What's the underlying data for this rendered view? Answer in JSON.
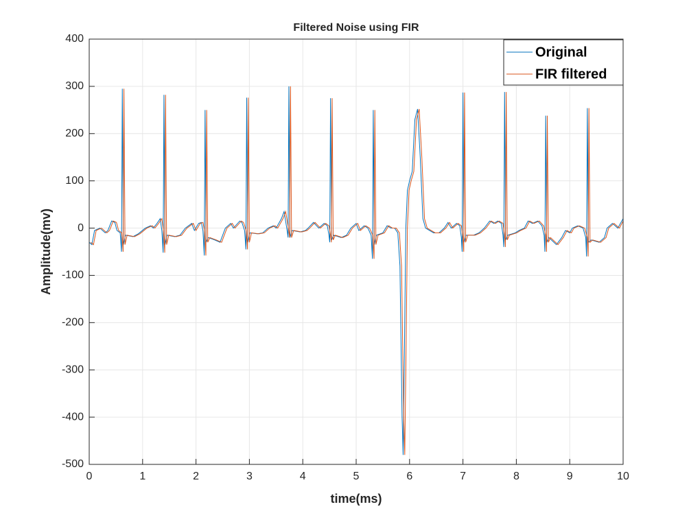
{
  "chart_data": {
    "type": "line",
    "title": "Filtered Noise using FIR",
    "x_label": "time(ms)",
    "y_label": "Amplitude(mv)",
    "xlim": [
      0,
      10
    ],
    "xticks": [
      0,
      1,
      2,
      3,
      4,
      5,
      6,
      7,
      8,
      9,
      10
    ],
    "ylim": [
      -500,
      400
    ],
    "yticks": [
      -500,
      -400,
      -300,
      -200,
      -100,
      0,
      100,
      200,
      300,
      400
    ],
    "grid": true,
    "legend": "northeast",
    "series": [
      {
        "name": "Original",
        "color": "#0072BD",
        "x": [
          0,
          0.05,
          0.1,
          0.2,
          0.3,
          0.35,
          0.42,
          0.48,
          0.52,
          0.58,
          0.605,
          0.62,
          0.64,
          0.68,
          0.82,
          0.92,
          1.05,
          1.15,
          1.2,
          1.27,
          1.33,
          1.36,
          1.385,
          1.4,
          1.42,
          1.46,
          1.6,
          1.7,
          1.8,
          1.92,
          1.97,
          2.05,
          2.1,
          2.13,
          2.155,
          2.17,
          2.19,
          2.23,
          2.35,
          2.45,
          2.55,
          2.65,
          2.7,
          2.82,
          2.86,
          2.91,
          2.935,
          2.95,
          2.97,
          3.01,
          3.15,
          3.25,
          3.35,
          3.45,
          3.5,
          3.6,
          3.65,
          3.7,
          3.725,
          3.74,
          3.76,
          3.8,
          3.95,
          4.05,
          4.1,
          4.2,
          4.3,
          4.4,
          4.46,
          4.49,
          4.505,
          4.52,
          4.54,
          4.58,
          4.72,
          4.82,
          4.9,
          5.0,
          5.05,
          5.15,
          5.22,
          5.28,
          5.305,
          5.32,
          5.34,
          5.38,
          5.5,
          5.58,
          5.65,
          5.72,
          5.78,
          5.82,
          5.86,
          5.88,
          5.9,
          5.93,
          5.96,
          6.0,
          6.05,
          6.1,
          6.15,
          6.2,
          6.25,
          6.3,
          6.45,
          6.55,
          6.65,
          6.72,
          6.78,
          6.88,
          6.94,
          6.97,
          6.985,
          7.0,
          7.02,
          7.06,
          7.2,
          7.3,
          7.4,
          7.5,
          7.58,
          7.65,
          7.72,
          7.75,
          7.765,
          7.78,
          7.8,
          7.84,
          7.98,
          8.05,
          8.15,
          8.22,
          8.3,
          8.4,
          8.48,
          8.52,
          8.535,
          8.55,
          8.57,
          8.61,
          8.75,
          8.85,
          8.92,
          9.0,
          9.05,
          9.15,
          9.25,
          9.3,
          9.315,
          9.33,
          9.35,
          9.4,
          9.55,
          9.65,
          9.7,
          9.8,
          9.9,
          10
        ],
        "values": [
          -30,
          -35,
          -5,
          0,
          -10,
          -5,
          15,
          12,
          -5,
          -10,
          -50,
          295,
          -35,
          -15,
          -18,
          -12,
          0,
          5,
          0,
          10,
          20,
          -5,
          -52,
          282,
          -35,
          -15,
          -18,
          -15,
          0,
          10,
          -5,
          10,
          12,
          -5,
          -58,
          250,
          -30,
          -20,
          -25,
          -30,
          0,
          10,
          0,
          15,
          12,
          -5,
          -45,
          276,
          -30,
          -10,
          -12,
          -10,
          0,
          5,
          0,
          20,
          35,
          0,
          -20,
          300,
          -20,
          -5,
          -8,
          -5,
          0,
          12,
          0,
          10,
          5,
          -15,
          -30,
          275,
          -25,
          -15,
          -20,
          -15,
          0,
          10,
          -5,
          5,
          0,
          -15,
          -65,
          250,
          -35,
          -15,
          -10,
          5,
          0,
          0,
          -10,
          -80,
          -400,
          -480,
          -300,
          0,
          80,
          100,
          120,
          230,
          252,
          150,
          20,
          0,
          -10,
          -10,
          0,
          12,
          0,
          10,
          5,
          -20,
          -50,
          287,
          -30,
          -15,
          -15,
          -10,
          0,
          15,
          10,
          15,
          10,
          -15,
          -40,
          288,
          -25,
          -15,
          -10,
          -5,
          0,
          15,
          10,
          15,
          5,
          -15,
          -50,
          238,
          -30,
          -20,
          -35,
          -20,
          -5,
          -10,
          0,
          5,
          0,
          -20,
          -60,
          254,
          -30,
          -25,
          -30,
          -20,
          0,
          10,
          0,
          20
        ]
      },
      {
        "name": "FIR filtered",
        "color": "#D95319",
        "x": [
          0.03,
          0.08,
          0.13,
          0.23,
          0.33,
          0.38,
          0.45,
          0.51,
          0.55,
          0.61,
          0.635,
          0.65,
          0.67,
          0.71,
          0.85,
          0.95,
          1.08,
          1.18,
          1.23,
          1.3,
          1.36,
          1.39,
          1.415,
          1.43,
          1.45,
          1.49,
          1.63,
          1.73,
          1.83,
          1.95,
          2.0,
          2.08,
          2.13,
          2.16,
          2.185,
          2.2,
          2.22,
          2.26,
          2.38,
          2.48,
          2.58,
          2.68,
          2.73,
          2.85,
          2.89,
          2.94,
          2.965,
          2.98,
          3.0,
          3.04,
          3.18,
          3.28,
          3.38,
          3.48,
          3.53,
          3.63,
          3.68,
          3.73,
          3.755,
          3.77,
          3.79,
          3.83,
          3.98,
          4.08,
          4.13,
          4.23,
          4.33,
          4.43,
          4.49,
          4.52,
          4.535,
          4.55,
          4.57,
          4.61,
          4.75,
          4.85,
          4.93,
          5.03,
          5.08,
          5.18,
          5.25,
          5.31,
          5.335,
          5.35,
          5.37,
          5.41,
          5.53,
          5.61,
          5.68,
          5.75,
          5.81,
          5.85,
          5.89,
          5.91,
          5.93,
          5.96,
          5.99,
          6.03,
          6.08,
          6.13,
          6.18,
          6.23,
          6.28,
          6.33,
          6.48,
          6.58,
          6.68,
          6.75,
          6.81,
          6.91,
          6.97,
          7.0,
          7.015,
          7.03,
          7.05,
          7.09,
          7.23,
          7.33,
          7.43,
          7.53,
          7.61,
          7.68,
          7.75,
          7.78,
          7.795,
          7.81,
          7.83,
          7.87,
          8.01,
          8.08,
          8.18,
          8.25,
          8.33,
          8.43,
          8.51,
          8.55,
          8.565,
          8.58,
          8.6,
          8.64,
          8.78,
          8.88,
          8.95,
          9.03,
          9.08,
          9.18,
          9.28,
          9.33,
          9.345,
          9.36,
          9.38,
          9.43,
          9.58,
          9.68,
          9.73,
          9.83,
          9.93,
          10
        ],
        "values": [
          -30,
          -35,
          -5,
          0,
          -10,
          -5,
          15,
          12,
          -5,
          -10,
          -50,
          295,
          -35,
          -15,
          -18,
          -12,
          0,
          5,
          0,
          10,
          20,
          -5,
          -52,
          282,
          -35,
          -15,
          -18,
          -15,
          0,
          10,
          -5,
          10,
          12,
          -5,
          -58,
          250,
          -30,
          -20,
          -25,
          -30,
          0,
          10,
          0,
          15,
          12,
          -5,
          -45,
          276,
          -30,
          -10,
          -12,
          -10,
          0,
          5,
          0,
          20,
          35,
          0,
          -20,
          300,
          -20,
          -5,
          -8,
          -5,
          0,
          12,
          0,
          10,
          5,
          -15,
          -30,
          275,
          -25,
          -15,
          -20,
          -15,
          0,
          10,
          -5,
          5,
          0,
          -15,
          -65,
          250,
          -35,
          -15,
          -10,
          5,
          0,
          0,
          -10,
          -80,
          -400,
          -480,
          -300,
          0,
          80,
          100,
          120,
          230,
          252,
          150,
          20,
          0,
          -10,
          -10,
          0,
          12,
          0,
          10,
          5,
          -20,
          -50,
          287,
          -30,
          -15,
          -15,
          -10,
          0,
          15,
          10,
          15,
          10,
          -15,
          -40,
          288,
          -25,
          -15,
          -10,
          -5,
          0,
          15,
          10,
          15,
          5,
          -15,
          -50,
          238,
          -30,
          -20,
          -35,
          -20,
          -5,
          -10,
          0,
          5,
          0,
          -20,
          -60,
          254,
          -30,
          -25,
          -30,
          -20,
          0,
          10,
          0,
          15
        ]
      }
    ]
  }
}
